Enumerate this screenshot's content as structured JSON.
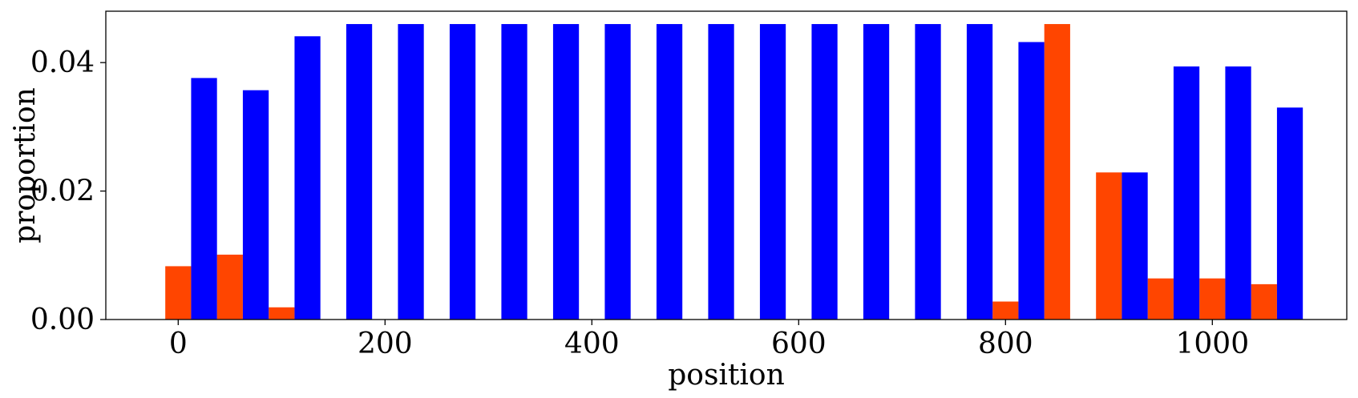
{
  "chart_data": {
    "type": "bar",
    "title": "",
    "xlabel": "position",
    "ylabel": "proportion",
    "xlim": [
      -70,
      1130
    ],
    "ylim": [
      0,
      0.048
    ],
    "xticks": [
      0,
      200,
      400,
      600,
      800,
      1000
    ],
    "xtick_labels": [
      "0",
      "200",
      "400",
      "600",
      "800",
      "1000"
    ],
    "yticks": [
      0.0,
      0.02,
      0.04
    ],
    "ytick_labels": [
      "0.00",
      "0.02",
      "0.04"
    ],
    "grid": false,
    "legend": null,
    "bar_width": 25,
    "series": [
      {
        "color": "#ff4500",
        "x": [
          0,
          50,
          100,
          800,
          850,
          900,
          950,
          1000,
          1050
        ],
        "values": [
          0.0083,
          0.0101,
          0.0019,
          0.0028,
          0.046,
          0.0229,
          0.0064,
          0.0064,
          0.0055
        ]
      },
      {
        "color": "#0000ff",
        "x": [
          25,
          75,
          125,
          175,
          225,
          275,
          325,
          375,
          425,
          475,
          525,
          575,
          625,
          675,
          725,
          775,
          825,
          925,
          975,
          1025,
          1075
        ],
        "values": [
          0.0376,
          0.0357,
          0.0441,
          0.046,
          0.046,
          0.046,
          0.046,
          0.046,
          0.046,
          0.046,
          0.046,
          0.046,
          0.046,
          0.046,
          0.046,
          0.046,
          0.0432,
          0.0229,
          0.0394,
          0.0394,
          0.033
        ]
      }
    ]
  }
}
